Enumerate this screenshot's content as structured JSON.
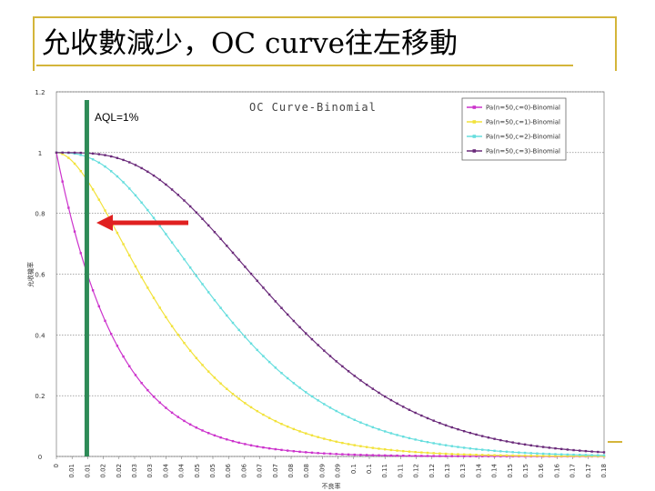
{
  "slide": {
    "title": "允收數減少，OC curve往左移動"
  },
  "chart_data": {
    "type": "line",
    "title": "OC Curve-Binomial",
    "xlabel": "不良率",
    "ylabel": "允收機率",
    "xlim": [
      0,
      0.18
    ],
    "ylim": [
      0,
      1.2
    ],
    "yticks": [
      "0",
      "0.2",
      "0.4",
      "0.6",
      "0.8",
      "1",
      "1.2"
    ],
    "xtick_labels": [
      "0",
      "0.01",
      "0.01",
      "0.02",
      "0.02",
      "0.03",
      "0.03",
      "0.04",
      "0.04",
      "0.05",
      "0.05",
      "0.06",
      "0.06",
      "0.07",
      "0.07",
      "0.08",
      "0.08",
      "0.09",
      "0.09",
      "0.1",
      "0.1",
      "0.11",
      "0.11",
      "0.12",
      "0.12",
      "0.13",
      "0.13",
      "0.14",
      "0.14",
      "0.15",
      "0.15",
      "0.16",
      "0.16",
      "0.17",
      "0.17",
      "0.18"
    ],
    "grid": true,
    "legend_position": "top-right",
    "series": [
      {
        "name": "Pa(n=50,c=0)-Binomial",
        "color": "#cc33cc",
        "n": 50,
        "c": 0
      },
      {
        "name": "Pa(n=50,c=1)-Binomial",
        "color": "#f2e23a",
        "n": 50,
        "c": 1
      },
      {
        "name": "Pa(n=50,c=2)-Binomial",
        "color": "#66dede",
        "n": 50,
        "c": 2
      },
      {
        "name": "Pa(n=50,c=3)-Binomial",
        "color": "#6a2a7a",
        "n": 50,
        "c": 3
      }
    ],
    "annotations": [
      {
        "text": "AQL=1%",
        "x": 0.01,
        "kind": "vertical-line",
        "color": "#2e8b57"
      },
      {
        "kind": "arrow",
        "direction": "left",
        "color": "#e02020"
      }
    ]
  }
}
